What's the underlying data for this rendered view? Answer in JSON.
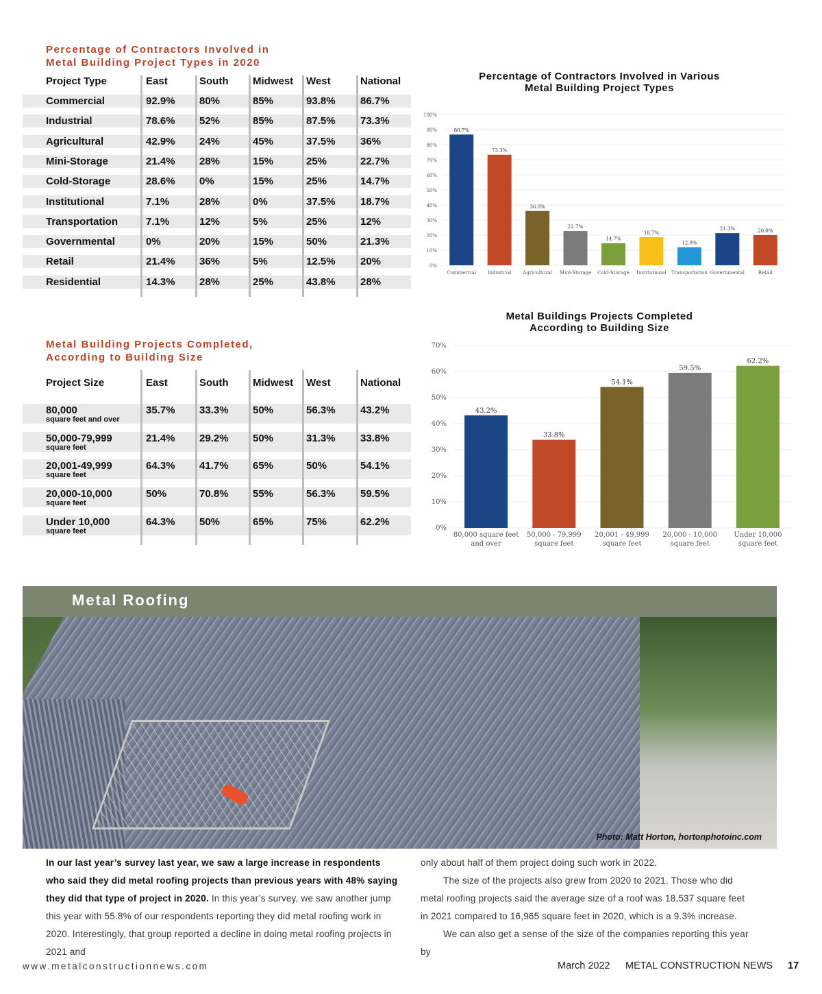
{
  "table1": {
    "title": [
      "Percentage of Contractors Involved in",
      "Metal Building Project Types in 2020"
    ],
    "headers": [
      "Project Type",
      "East",
      "South",
      "Midwest",
      "West",
      "National"
    ],
    "rows": [
      [
        "Commercial",
        "92.9%",
        "80%",
        "85%",
        "93.8%",
        "86.7%"
      ],
      [
        "Industrial",
        "78.6%",
        "52%",
        "85%",
        "87.5%",
        "73.3%"
      ],
      [
        "Agricultural",
        "42.9%",
        "24%",
        "45%",
        "37.5%",
        "36%"
      ],
      [
        "Mini-Storage",
        "21.4%",
        "28%",
        "15%",
        "25%",
        "22.7%"
      ],
      [
        "Cold-Storage",
        "28.6%",
        "0%",
        "15%",
        "25%",
        "14.7%"
      ],
      [
        "Institutional",
        "7.1%",
        "28%",
        "0%",
        "37.5%",
        "18.7%"
      ],
      [
        "Transportation",
        "7.1%",
        "12%",
        "5%",
        "25%",
        "12%"
      ],
      [
        "Governmental",
        "0%",
        "20%",
        "15%",
        "50%",
        "21.3%"
      ],
      [
        "Retail",
        "21.4%",
        "36%",
        "5%",
        "12.5%",
        "20%"
      ],
      [
        "Residential",
        "14.3%",
        "28%",
        "25%",
        "43.8%",
        "28%"
      ]
    ]
  },
  "table2": {
    "title": [
      "Metal Building Projects Completed,",
      "According to Building Size"
    ],
    "headers": [
      "Project Size",
      "East",
      "South",
      "Midwest",
      "West",
      "National"
    ],
    "rows": [
      [
        "80,000",
        "square feet and over",
        "35.7%",
        "33.3%",
        "50%",
        "56.3%",
        "43.2%"
      ],
      [
        "50,000-79,999",
        "square feet",
        "21.4%",
        "29.2%",
        "50%",
        "31.3%",
        "33.8%"
      ],
      [
        "20,001-49,999",
        "square feet",
        "64.3%",
        "41.7%",
        "65%",
        "50%",
        "54.1%"
      ],
      [
        "20,000-10,000",
        "square feet",
        "50%",
        "70.8%",
        "55%",
        "56.3%",
        "59.5%"
      ],
      [
        "Under 10,000",
        "square feet",
        "64.3%",
        "50%",
        "65%",
        "75%",
        "62.2%"
      ]
    ]
  },
  "chart_data": [
    {
      "type": "bar",
      "title": "Percentage of Contractors Involved in Various Metal Building Project Types",
      "categories": [
        "Commercial",
        "Industrial",
        "Agricultural",
        "Mini-Storage",
        "Cold-Storage",
        "Institutional",
        "Transportation",
        "Governmental",
        "Retail"
      ],
      "values": [
        86.7,
        73.3,
        36.0,
        22.7,
        14.7,
        18.7,
        12.0,
        21.3,
        20.0
      ],
      "labels": [
        "86.7%",
        "73.3%",
        "36.0%",
        "22.7%",
        "14.7%",
        "18.7%",
        "12.0%",
        "21.3%",
        "20.0%"
      ],
      "colors": [
        "#1b4586",
        "#c04a25",
        "#7a622b",
        "#7b7b7b",
        "#7a9f3c",
        "#f7bf17",
        "#2299d6",
        "#1b4586",
        "#c04a25"
      ],
      "ylim": [
        0,
        100
      ],
      "yticks": [
        "0%",
        "10%",
        "20%",
        "30%",
        "40%",
        "50%",
        "60%",
        "70%",
        "80%",
        "90%",
        "100%"
      ],
      "grid": true
    },
    {
      "type": "bar",
      "title": "Metal Buildings Projects Completed According to Building Size",
      "categories": [
        [
          "80,000 square feet",
          "and over"
        ],
        [
          "50,000 - 79,999",
          "square feet"
        ],
        [
          "20,001 - 49,999",
          "square feet"
        ],
        [
          "20,000 - 10,000",
          "square feet"
        ],
        [
          "Under 10,000",
          "square feet"
        ]
      ],
      "values": [
        43.2,
        33.8,
        54.1,
        59.5,
        62.2
      ],
      "labels": [
        "43.2%",
        "33.8%",
        "54.1%",
        "59.5%",
        "62.2%"
      ],
      "colors": [
        "#1b4586",
        "#c04a25",
        "#7a622b",
        "#7b7b7b",
        "#7a9f3c"
      ],
      "ylim": [
        0,
        70
      ],
      "yticks": [
        "0%",
        "10%",
        "20%",
        "30%",
        "40%",
        "50%",
        "60%",
        "70%"
      ],
      "grid": true
    }
  ],
  "chart1_title": [
    "Percentage of Contractors Involved in Various",
    "Metal Building Project Types"
  ],
  "chart2_title": [
    "Metal Buildings Projects Completed",
    "According to Building Size"
  ],
  "section": {
    "title": "Metal Roofing",
    "photo_credit": "Photo: Matt Horton, hortonphotoinc.com"
  },
  "article": {
    "lead_bold": "In our last year’s survey last year, we saw a large increase in respondents who said they did  metal roofing projects than previous years with 48% saying they did that type of project in 2020.",
    "lead_rest": " In this year’s survey, we saw another jump this year with 55.8% of our respondents reporting they did metal roofing work in 2020. Interestingly, that group reported a decline in doing metal roofing projects in 2021 and",
    "col2_p1": "only about half of them project doing such work in 2022.",
    "col2_p2": "The size of the projects also grew from 2020 to 2021. Those who did metal roofing projects said the average size of a roof was 18,537 square feet in 2021 compared to 16,965 square feet in 2020, which is a 9.3% increase.",
    "col2_p3": "We can also get a sense of the size of the companies reporting this year by"
  },
  "footer": {
    "url": "www.metalconstructionnews.com",
    "date": "March 2022",
    "publication": "METAL CONSTRUCTION NEWS",
    "page": "17"
  }
}
